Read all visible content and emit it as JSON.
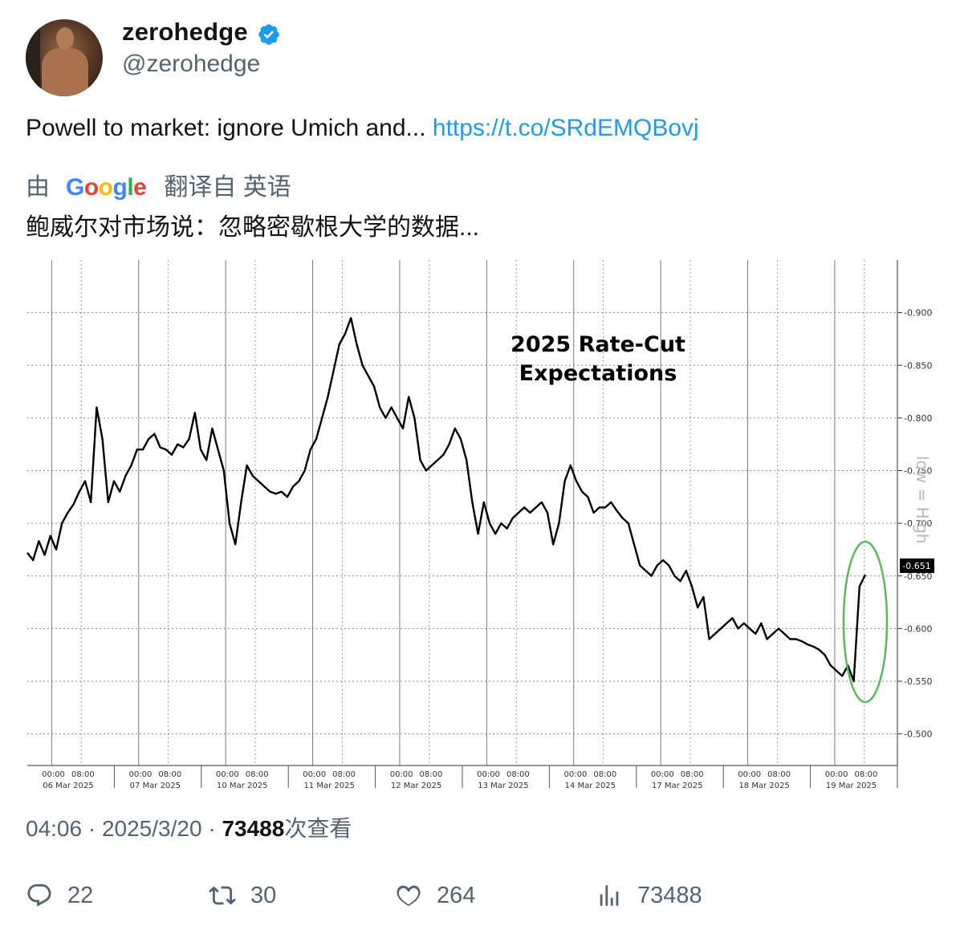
{
  "author": {
    "name": "zerohedge",
    "handle": "@zerohedge",
    "verified": true
  },
  "tweet": {
    "text": "Powell to market: ignore Umich and... ",
    "link": "https://t.co/SRdEMQBovj"
  },
  "translation": {
    "prefix": "由",
    "provider": "Google",
    "suffix": "翻译自 英语",
    "text": "鲍威尔对市场说：忽略密歇根大学的数据..."
  },
  "meta": {
    "time": "04:06",
    "separator": "·",
    "date": "2025/3/20",
    "views_count": "73488",
    "views_label": "次查看"
  },
  "actions": {
    "replies": "22",
    "retweets": "30",
    "likes": "264",
    "views": "73488"
  },
  "colors": {
    "link": "#1d9bf0",
    "secondary_text": "#536471",
    "verified": "#1d9bf0",
    "highlight_circle": "#5cb85c"
  },
  "chart_data": {
    "type": "line",
    "title": "2025 Rate-Cut Expectations",
    "title_lines": [
      "2025 Rate-Cut",
      "Expectations"
    ],
    "side_note": "low = High",
    "last_value_label": "-0.651",
    "ylim": [
      -0.95,
      -0.47
    ],
    "yticks": [
      -0.9,
      -0.85,
      -0.8,
      -0.75,
      -0.7,
      -0.65,
      -0.6,
      -0.55,
      -0.5
    ],
    "ytick_labels": [
      "-0.900",
      "-0.850",
      "-0.800",
      "-0.750",
      "-0.700",
      "-0.650",
      "-0.600",
      "-0.550",
      "-0.500"
    ],
    "grid": true,
    "days": [
      {
        "date": "06 Mar 2025",
        "times": [
          "00:00",
          "08:00"
        ]
      },
      {
        "date": "07 Mar 2025",
        "times": [
          "00:00",
          "08:00"
        ]
      },
      {
        "date": "10 Mar 2025",
        "times": [
          "00:00",
          "08:00"
        ]
      },
      {
        "date": "11 Mar 2025",
        "times": [
          "00:00",
          "08:00"
        ]
      },
      {
        "date": "12 Mar 2025",
        "times": [
          "00:00",
          "08:00"
        ]
      },
      {
        "date": "13 Mar 2025",
        "times": [
          "00:00",
          "08:00"
        ]
      },
      {
        "date": "14 Mar 2025",
        "times": [
          "00:00",
          "08:00"
        ]
      },
      {
        "date": "17 Mar 2025",
        "times": [
          "00:00",
          "08:00"
        ]
      },
      {
        "date": "18 Mar 2025",
        "times": [
          "00:00",
          "08:00"
        ]
      },
      {
        "date": "19 Mar 2025",
        "times": [
          "00:00",
          "08:00"
        ]
      }
    ],
    "series": [
      {
        "values": [
          -0.672,
          -0.665,
          -0.683,
          -0.67,
          -0.688,
          -0.675,
          -0.7,
          -0.71,
          -0.718,
          -0.73,
          -0.74,
          -0.72,
          -0.81,
          -0.78,
          -0.72,
          -0.74,
          -0.73,
          -0.745,
          -0.755,
          -0.77,
          -0.77,
          -0.78,
          -0.785,
          -0.772,
          -0.77,
          -0.765,
          -0.775,
          -0.772,
          -0.78,
          -0.805,
          -0.77,
          -0.76,
          -0.79,
          -0.77,
          -0.75,
          -0.7,
          -0.68,
          -0.72,
          -0.755,
          -0.745,
          -0.74,
          -0.735,
          -0.73,
          -0.728,
          -0.73,
          -0.725,
          -0.735,
          -0.74,
          -0.75,
          -0.77,
          -0.78,
          -0.8,
          -0.82,
          -0.845,
          -0.87,
          -0.88,
          -0.895,
          -0.87,
          -0.85,
          -0.84,
          -0.83,
          -0.81,
          -0.8,
          -0.81,
          -0.8,
          -0.79,
          -0.82,
          -0.8,
          -0.76,
          -0.75,
          -0.755,
          -0.76,
          -0.765,
          -0.775,
          -0.79,
          -0.78,
          -0.76,
          -0.72,
          -0.69,
          -0.72,
          -0.7,
          -0.69,
          -0.7,
          -0.695,
          -0.705,
          -0.71,
          -0.715,
          -0.71,
          -0.715,
          -0.72,
          -0.71,
          -0.68,
          -0.7,
          -0.74,
          -0.755,
          -0.74,
          -0.73,
          -0.725,
          -0.71,
          -0.715,
          -0.715,
          -0.72,
          -0.712,
          -0.705,
          -0.7,
          -0.68,
          -0.66,
          -0.655,
          -0.65,
          -0.66,
          -0.665,
          -0.66,
          -0.65,
          -0.645,
          -0.655,
          -0.64,
          -0.62,
          -0.63,
          -0.59,
          -0.595,
          -0.6,
          -0.605,
          -0.61,
          -0.6,
          -0.605,
          -0.6,
          -0.595,
          -0.605,
          -0.59,
          -0.595,
          -0.6,
          -0.595,
          -0.59,
          -0.59,
          -0.588,
          -0.585,
          -0.583,
          -0.58,
          -0.575,
          -0.565,
          -0.56,
          -0.555,
          -0.565,
          -0.55,
          -0.64,
          -0.651
        ]
      }
    ]
  }
}
